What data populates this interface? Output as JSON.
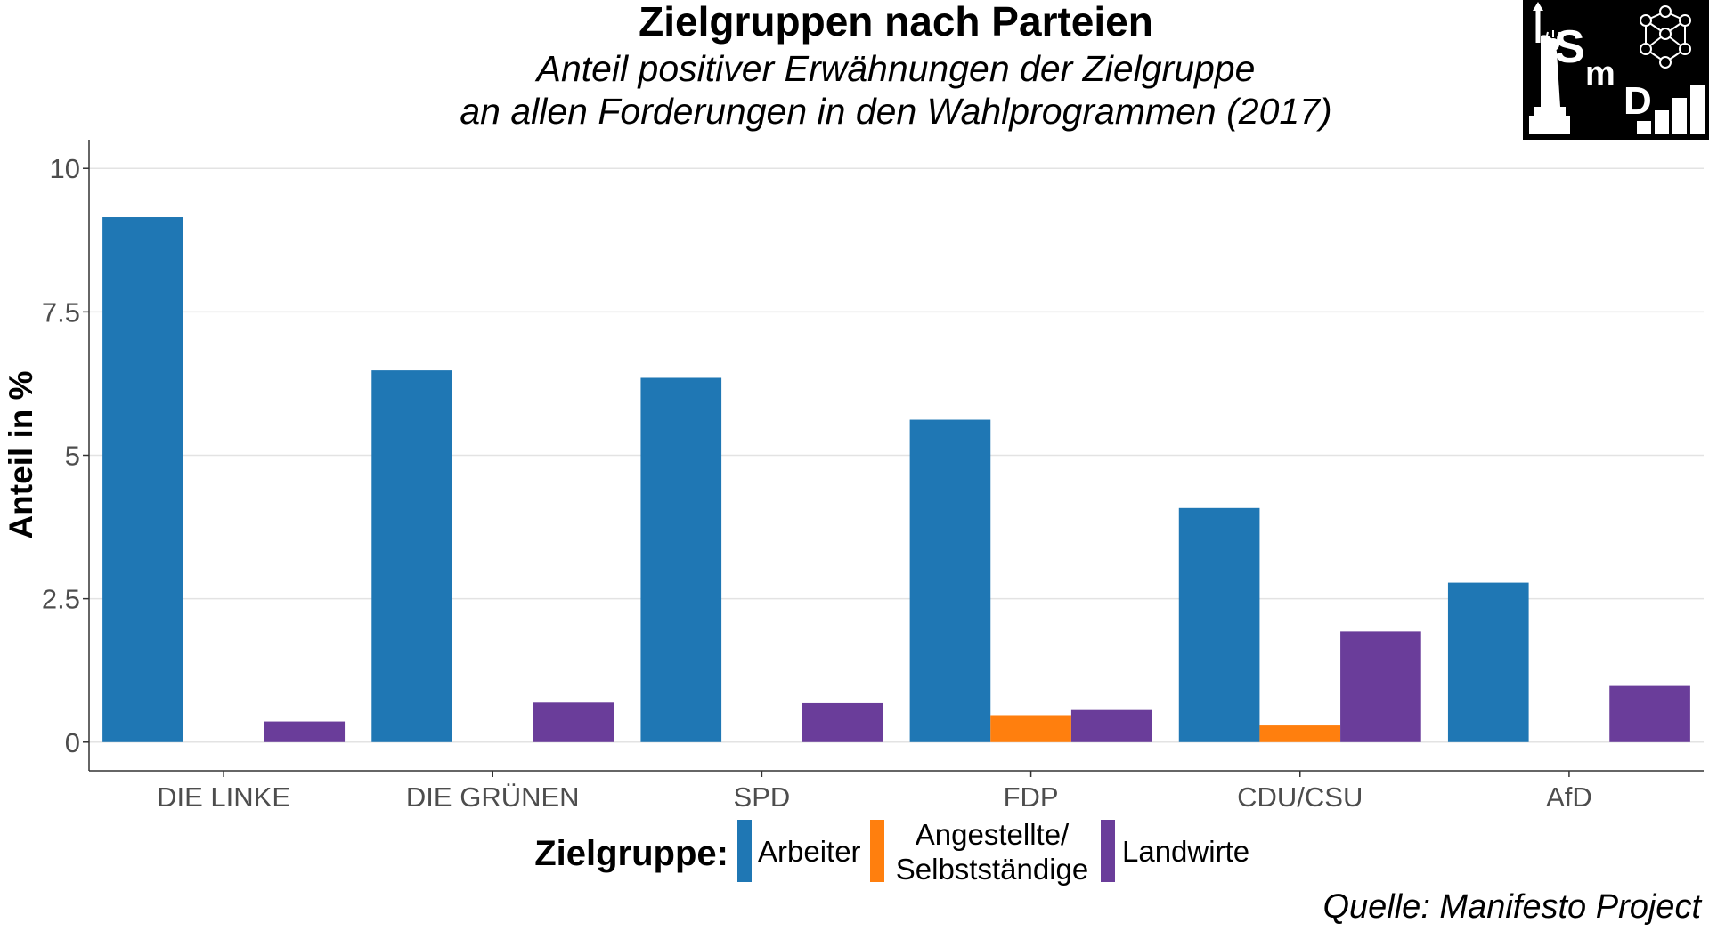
{
  "chart_data": {
    "type": "bar",
    "title": "Zielgruppen nach Parteien",
    "subtitle_lines": [
      "Anteil positiver Erwähnungen der Zielgruppe",
      "an allen Forderungen in den Wahlprogrammen (2017)"
    ],
    "xlabel": "",
    "ylabel": "Anteil in %",
    "categories": [
      "DIE LINKE",
      "DIE GRÜNEN",
      "SPD",
      "FDP",
      "CDU/CSU",
      "AfD"
    ],
    "series": [
      {
        "name": "Arbeiter",
        "color": "#1f77b4",
        "values": [
          9.15,
          6.48,
          6.35,
          5.62,
          4.08,
          2.78
        ]
      },
      {
        "name": "Angestellte/ Selbstständige",
        "color": "#ff7f0e",
        "values": [
          0,
          0,
          0,
          0.47,
          0.29,
          0
        ]
      },
      {
        "name": "Landwirte",
        "color": "#6a3d9a",
        "values": [
          0.36,
          0.69,
          0.68,
          0.56,
          1.93,
          0.98
        ]
      }
    ],
    "ylim": [
      -0.5,
      10.5
    ],
    "yticks": [
      0,
      2.5,
      5,
      7.5,
      10
    ],
    "ytick_labels": [
      "0",
      "2.5",
      "5",
      "7.5",
      "10"
    ],
    "grid": true,
    "legend": {
      "title": "Zielgruppe:",
      "placement": "bottom",
      "labels": [
        [
          "Arbeiter"
        ],
        [
          "Angestellte/",
          "Selbstständige"
        ],
        [
          "Landwirte"
        ]
      ]
    },
    "caption": "Quelle: Manifesto Project"
  },
  "logo": {
    "text_s": "S",
    "text_m": "m",
    "text_d": "D"
  }
}
